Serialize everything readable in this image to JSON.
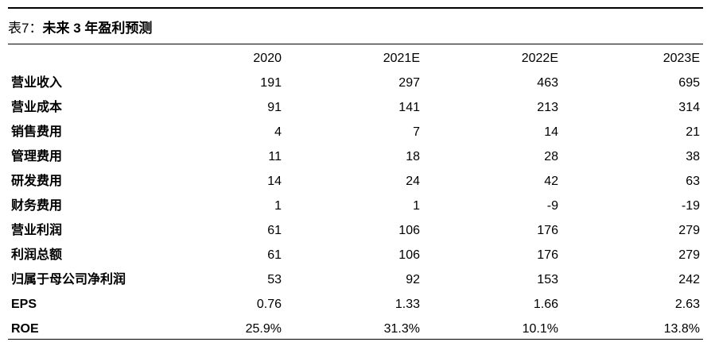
{
  "caption": {
    "label": "表7：",
    "title": "未来 3 年盈利预测"
  },
  "table": {
    "columns": [
      "2020",
      "2021E",
      "2022E",
      "2023E"
    ],
    "rows": [
      {
        "label": "营业收入",
        "values": [
          "191",
          "297",
          "463",
          "695"
        ]
      },
      {
        "label": "营业成本",
        "values": [
          "91",
          "141",
          "213",
          "314"
        ]
      },
      {
        "label": "销售费用",
        "values": [
          "4",
          "7",
          "14",
          "21"
        ]
      },
      {
        "label": "管理费用",
        "values": [
          "11",
          "18",
          "28",
          "38"
        ]
      },
      {
        "label": "研发费用",
        "values": [
          "14",
          "24",
          "42",
          "63"
        ]
      },
      {
        "label": "财务费用",
        "values": [
          "1",
          "1",
          "-9",
          "-19"
        ]
      },
      {
        "label": "营业利润",
        "values": [
          "61",
          "106",
          "176",
          "279"
        ]
      },
      {
        "label": "利润总额",
        "values": [
          "61",
          "106",
          "176",
          "279"
        ]
      },
      {
        "label": "归属于母公司净利润",
        "values": [
          "53",
          "92",
          "153",
          "242"
        ]
      },
      {
        "label": "EPS",
        "values": [
          "0.76",
          "1.33",
          "1.66",
          "2.63"
        ]
      },
      {
        "label": "ROE",
        "values": [
          "25.9%",
          "31.3%",
          "10.1%",
          "13.8%"
        ]
      }
    ]
  }
}
